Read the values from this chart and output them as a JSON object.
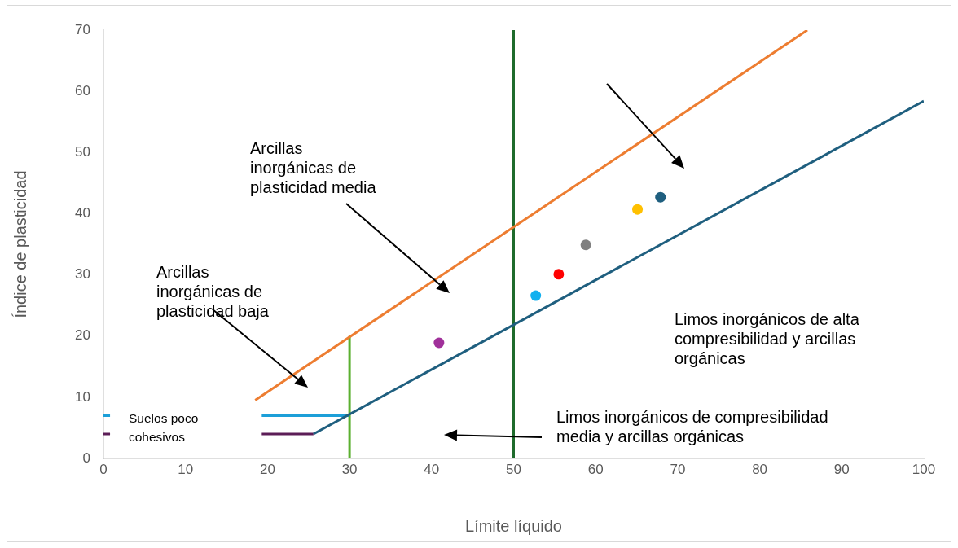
{
  "chart_data": {
    "type": "line",
    "xlabel": "Límite líquido",
    "ylabel": "Índice de plasticidad",
    "xlim": [
      0,
      100
    ],
    "xticks": [
      0,
      10,
      20,
      30,
      40,
      50,
      60,
      70,
      80,
      90,
      100
    ],
    "ylim": [
      0,
      70
    ],
    "yticks": [
      0,
      10,
      20,
      30,
      40,
      50,
      60,
      70
    ],
    "series": [
      {
        "color": "#ed7d31",
        "x": [
          18.5,
          85.8
        ],
        "values": [
          9.5,
          70
        ]
      },
      {
        "color": "#1f5f7f",
        "x": [
          25.6,
          100
        ],
        "values": [
          4,
          58.4
        ]
      },
      {
        "color": "#1c9fd8",
        "x": [
          0,
          0.8,
          10,
          19.3,
          30
        ],
        "values": [
          7,
          7,
          null,
          7,
          7
        ]
      },
      {
        "color": "#5c1d57",
        "x": [
          0,
          0.8,
          10,
          19.3,
          25.6
        ],
        "values": [
          4,
          4,
          null,
          4,
          4
        ]
      },
      {
        "color": "#5bb030",
        "x": [
          30,
          30
        ],
        "values": [
          0,
          20
        ]
      },
      {
        "color": "#1f6b2c",
        "x": [
          50,
          50
        ],
        "values": [
          0,
          70
        ]
      },
      {
        "type": "scatter",
        "marker": "circle",
        "x": [
          40.9,
          52.7,
          55.5,
          58.8,
          65.1,
          67.9
        ],
        "values": [
          18.9,
          26.6,
          30.1,
          34.9,
          40.7,
          42.7
        ],
        "colors": [
          "#a0309a",
          "#12b0ef",
          "#ff0000",
          "#808080",
          "#ffc000",
          "#1f5f7f"
        ]
      }
    ],
    "annotations": [
      "Arcillas\ninorgánicas de\nplasticidad media",
      "Arcillas\ninorgánicas de\nplasticidad baja",
      "Limos inorgánicos de alta\ncompresibilidad y arcillas\norgánicas",
      "Limos inorgánicos de compresibilidad\nmedia y arcillas orgánicas",
      "Suelos poco\ncohesivos"
    ]
  }
}
